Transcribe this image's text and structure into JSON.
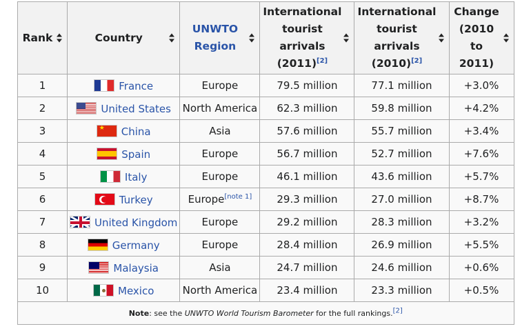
{
  "headers": {
    "rank": "Rank",
    "country": "Country",
    "region_line1": "UNWTO",
    "region_line2": "Region",
    "arrivals2011_line1": "International",
    "arrivals2011_line2": "tourist",
    "arrivals2011_line3": "arrivals",
    "arrivals2011_line4": "(2011)",
    "arrivals2011_ref": "[2]",
    "arrivals2010_line1": "International",
    "arrivals2010_line2": "tourist",
    "arrivals2010_line3": "arrivals",
    "arrivals2010_line4": "(2010)",
    "arrivals2010_ref": "[2]",
    "change_line1": "Change",
    "change_line2": "(2010 to",
    "change_line3": "2011)"
  },
  "rows": [
    {
      "rank": "1",
      "flag": "flag-france",
      "country": "France",
      "region": "Europe",
      "region_note": "",
      "arrivals_2011": "79.5 million",
      "arrivals_2010": "77.1 million",
      "change": "+3.0%"
    },
    {
      "rank": "2",
      "flag": "flag-united-states",
      "country": "United States",
      "region": "North America",
      "region_note": "",
      "arrivals_2011": "62.3 million",
      "arrivals_2010": "59.8 million",
      "change": "+4.2%"
    },
    {
      "rank": "3",
      "flag": "flag-china",
      "country": "China",
      "region": "Asia",
      "region_note": "",
      "arrivals_2011": "57.6 million",
      "arrivals_2010": "55.7 million",
      "change": "+3.4%"
    },
    {
      "rank": "4",
      "flag": "flag-spain",
      "country": "Spain",
      "region": "Europe",
      "region_note": "",
      "arrivals_2011": "56.7 million",
      "arrivals_2010": "52.7 million",
      "change": "+7.6%"
    },
    {
      "rank": "5",
      "flag": "flag-italy",
      "country": "Italy",
      "region": "Europe",
      "region_note": "",
      "arrivals_2011": "46.1 million",
      "arrivals_2010": "43.6 million",
      "change": "+5.7%"
    },
    {
      "rank": "6",
      "flag": "flag-turkey",
      "country": "Turkey",
      "region": "Europe",
      "region_note": "[note 1]",
      "arrivals_2011": "29.3 million",
      "arrivals_2010": "27.0 million",
      "change": "+8.7%"
    },
    {
      "rank": "7",
      "flag": "flag-united-kingdom",
      "country": "United Kingdom",
      "region": "Europe",
      "region_note": "",
      "arrivals_2011": "29.2 million",
      "arrivals_2010": "28.3 million",
      "change": "+3.2%"
    },
    {
      "rank": "8",
      "flag": "flag-germany",
      "country": "Germany",
      "region": "Europe",
      "region_note": "",
      "arrivals_2011": "28.4 million",
      "arrivals_2010": "26.9 million",
      "change": "+5.5%"
    },
    {
      "rank": "9",
      "flag": "flag-malaysia",
      "country": "Malaysia",
      "region": "Asia",
      "region_note": "",
      "arrivals_2011": "24.7 million",
      "arrivals_2010": "24.6 million",
      "change": "+0.6%"
    },
    {
      "rank": "10",
      "flag": "flag-mexico",
      "country": "Mexico",
      "region": "North America",
      "region_note": "",
      "arrivals_2011": "23.4 million",
      "arrivals_2010": "23.3 million",
      "change": "+0.5%"
    }
  ],
  "footnote": {
    "label": "Note",
    "text_before": ": see the ",
    "source_title": "UNWTO World Tourism Barometer",
    "text_after": " for the full rankings.",
    "ref": "[2]"
  },
  "colors": {
    "link": "#2a54a8",
    "header_bg": "#f2f2f2",
    "cell_bg": "#f9f9f9",
    "border": "#aaaaaa"
  }
}
